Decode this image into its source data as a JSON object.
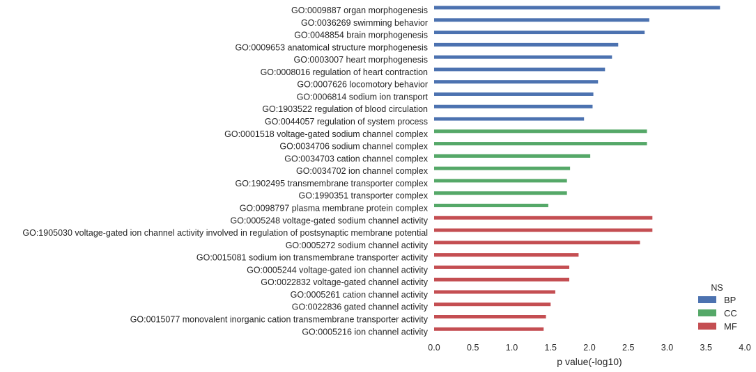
{
  "chart_data": {
    "type": "bar",
    "orientation": "horizontal",
    "title": "",
    "xlabel": "p value(-log10)",
    "ylabel": "",
    "xlim": [
      0,
      4
    ],
    "xticks": [
      "0.0",
      "0.5",
      "1.0",
      "1.5",
      "2.0",
      "2.5",
      "3.0",
      "3.5",
      "4.0"
    ],
    "grid": false,
    "legend": {
      "title": "NS",
      "placement": "bottom-right",
      "entries": [
        {
          "name": "BP",
          "color": "#4c72b0"
        },
        {
          "name": "CC",
          "color": "#55a868"
        },
        {
          "name": "MF",
          "color": "#c44e52"
        }
      ]
    },
    "series": [
      {
        "name": "BP",
        "color": "#4c72b0",
        "categories": [
          "GO:0009887 organ morphogenesis",
          "GO:0036269 swimming behavior",
          "GO:0048854 brain morphogenesis",
          "GO:0009653 anatomical structure morphogenesis",
          "GO:0003007 heart morphogenesis",
          "GO:0008016 regulation of heart contraction",
          "GO:0007626 locomotory behavior",
          "GO:0006814 sodium ion transport",
          "GO:1903522 regulation of blood circulation",
          "GO:0044057 regulation of system process"
        ],
        "values": [
          3.68,
          2.77,
          2.71,
          2.37,
          2.29,
          2.2,
          2.11,
          2.05,
          2.04,
          1.93
        ]
      },
      {
        "name": "CC",
        "color": "#55a868",
        "categories": [
          "GO:0001518 voltage-gated sodium channel complex",
          "GO:0034706 sodium channel complex",
          "GO:0034703 cation channel complex",
          "GO:0034702 ion channel complex",
          "GO:1902495 transmembrane transporter complex",
          "GO:1990351 transporter complex",
          "GO:0098797 plasma membrane protein complex"
        ],
        "values": [
          2.74,
          2.74,
          2.01,
          1.75,
          1.71,
          1.71,
          1.47
        ]
      },
      {
        "name": "MF",
        "color": "#c44e52",
        "categories": [
          "GO:0005248 voltage-gated sodium channel activity",
          "GO:1905030 voltage-gated ion channel activity involved in regulation of postsynaptic membrane potential",
          "GO:0005272 sodium channel activity",
          "GO:0015081 sodium ion transmembrane transporter activity",
          "GO:0005244 voltage-gated ion channel activity",
          "GO:0022832 voltage-gated channel activity",
          "GO:0005261 cation channel activity",
          "GO:0022836 gated channel activity",
          "GO:0015077 monovalent inorganic cation transmembrane transporter activity",
          "GO:0005216 ion channel activity"
        ],
        "values": [
          2.81,
          2.81,
          2.65,
          1.86,
          1.74,
          1.74,
          1.56,
          1.5,
          1.44,
          1.41
        ]
      }
    ]
  }
}
